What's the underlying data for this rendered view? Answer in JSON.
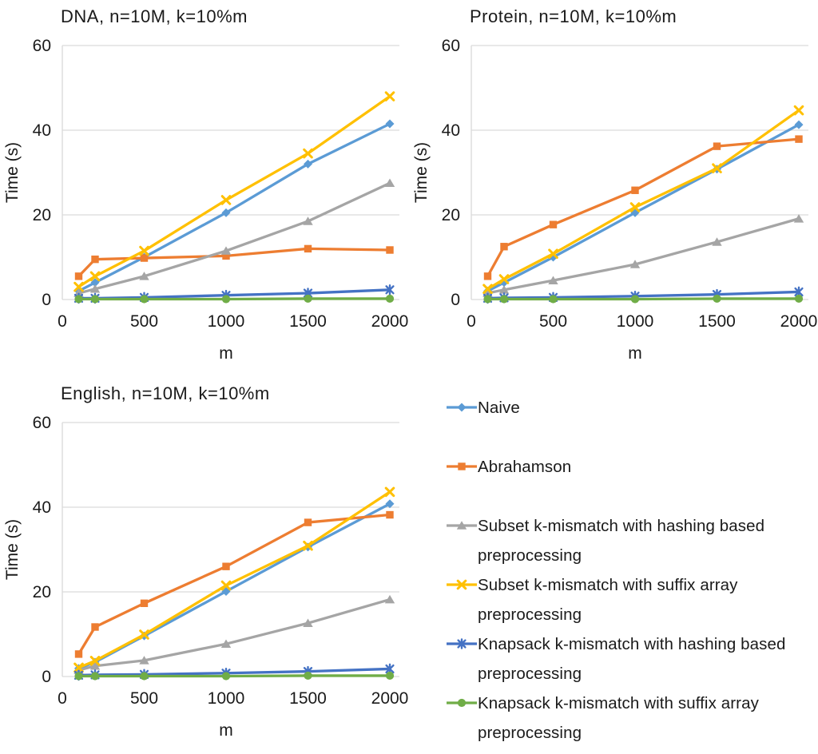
{
  "figure": {
    "background": "#ffffff",
    "text_color": "#1a1a1a",
    "gridline_color": "#d9d9d9"
  },
  "series_styles": [
    {
      "key": "naive",
      "color": "#5B9BD5",
      "marker": "diamond"
    },
    {
      "key": "abrahamson",
      "color": "#ED7D31",
      "marker": "square"
    },
    {
      "key": "subset-hashing",
      "color": "#A5A5A5",
      "marker": "triangle"
    },
    {
      "key": "subset-suffix",
      "color": "#FFC000",
      "marker": "x"
    },
    {
      "key": "knapsack-hashing",
      "color": "#4472C4",
      "marker": "star"
    },
    {
      "key": "knapsack-suffix",
      "color": "#70AD47",
      "marker": "circle"
    }
  ],
  "chart_data": [
    {
      "id": "dna",
      "type": "line",
      "title": "DNA, n=10M, k=10%m",
      "xlabel": "m",
      "ylabel": "Time (s)",
      "xlim": [
        0,
        2060
      ],
      "ylim": [
        0,
        60
      ],
      "xticks": [
        0,
        500,
        1000,
        1500,
        2000
      ],
      "yticks": [
        0,
        20,
        40,
        60
      ],
      "grid": "horizontal",
      "x": [
        100,
        200,
        500,
        1000,
        1500,
        2000
      ],
      "series": [
        {
          "name": "Naive",
          "values": [
            2.0,
            4.0,
            10.0,
            20.5,
            32.0,
            41.5
          ]
        },
        {
          "name": "Abrahamson",
          "values": [
            5.5,
            9.5,
            9.8,
            10.3,
            12.0,
            11.7
          ]
        },
        {
          "name": "Subset k-mismatch with hashing based preprocessing",
          "values": [
            1.5,
            2.5,
            5.5,
            11.5,
            18.5,
            27.5
          ]
        },
        {
          "name": "Subset k-mismatch with suffix array preprocessing",
          "values": [
            3.0,
            5.5,
            11.5,
            23.5,
            34.5,
            48.0
          ]
        },
        {
          "name": "Knapsack k-mismatch with hashing based preprocessing",
          "values": [
            0.3,
            0.3,
            0.5,
            1.0,
            1.5,
            2.3
          ]
        },
        {
          "name": "Knapsack k-mismatch with suffix array preprocessing",
          "values": [
            0.1,
            0.1,
            0.1,
            0.1,
            0.2,
            0.2
          ]
        }
      ]
    },
    {
      "id": "protein",
      "type": "line",
      "title": "Protein, n=10M, k=10%m",
      "xlabel": "m",
      "ylabel": "Time (s)",
      "xlim": [
        0,
        2060
      ],
      "ylim": [
        0,
        60
      ],
      "xticks": [
        0,
        500,
        1000,
        1500,
        2000
      ],
      "yticks": [
        0,
        20,
        40,
        60
      ],
      "grid": "horizontal",
      "x": [
        100,
        200,
        500,
        1000,
        1500,
        2000
      ],
      "series": [
        {
          "name": "Naive",
          "values": [
            2.0,
            4.0,
            10.0,
            20.5,
            30.8,
            41.3
          ]
        },
        {
          "name": "Abrahamson",
          "values": [
            5.5,
            12.5,
            17.7,
            25.8,
            36.2,
            37.9
          ]
        },
        {
          "name": "Subset k-mismatch with hashing based preprocessing",
          "values": [
            1.5,
            2.3,
            4.5,
            8.3,
            13.6,
            19.1
          ]
        },
        {
          "name": "Subset k-mismatch with suffix array preprocessing",
          "values": [
            2.5,
            4.8,
            10.8,
            21.8,
            31.0,
            44.7
          ]
        },
        {
          "name": "Knapsack k-mismatch with hashing based preprocessing",
          "values": [
            0.3,
            0.4,
            0.5,
            0.8,
            1.2,
            1.8
          ]
        },
        {
          "name": "Knapsack k-mismatch with suffix array preprocessing",
          "values": [
            0.1,
            0.1,
            0.1,
            0.1,
            0.2,
            0.2
          ]
        }
      ]
    },
    {
      "id": "english",
      "type": "line",
      "title": "English, n=10M, k=10%m",
      "xlabel": "m",
      "ylabel": "Time (s)",
      "xlim": [
        0,
        2060
      ],
      "ylim": [
        0,
        60
      ],
      "xticks": [
        0,
        500,
        1000,
        1500,
        2000
      ],
      "yticks": [
        0,
        20,
        40,
        60
      ],
      "grid": "horizontal",
      "x": [
        100,
        200,
        500,
        1000,
        1500,
        2000
      ],
      "series": [
        {
          "name": "Naive",
          "values": [
            1.9,
            3.4,
            9.6,
            20.1,
            30.6,
            40.8
          ]
        },
        {
          "name": "Abrahamson",
          "values": [
            5.3,
            11.7,
            17.3,
            26.0,
            36.4,
            38.2
          ]
        },
        {
          "name": "Subset k-mismatch with hashing based preprocessing",
          "values": [
            1.5,
            2.5,
            3.8,
            7.7,
            12.6,
            18.2
          ]
        },
        {
          "name": "Subset k-mismatch with suffix array preprocessing",
          "values": [
            2.1,
            3.7,
            9.9,
            21.5,
            30.9,
            43.6
          ]
        },
        {
          "name": "Knapsack k-mismatch with hashing based preprocessing",
          "values": [
            0.3,
            0.4,
            0.5,
            0.8,
            1.2,
            1.8
          ]
        },
        {
          "name": "Knapsack k-mismatch with suffix array preprocessing",
          "values": [
            0.1,
            0.1,
            0.1,
            0.1,
            0.2,
            0.2
          ]
        }
      ]
    }
  ],
  "legend": {
    "items": [
      {
        "label": "Naive",
        "color": "#5B9BD5",
        "marker": "diamond"
      },
      {
        "label": "Abrahamson",
        "color": "#ED7D31",
        "marker": "square"
      },
      {
        "label": "Subset k-mismatch with hashing based preprocessing",
        "color": "#A5A5A5",
        "marker": "triangle"
      },
      {
        "label": "Subset k-mismatch with suffix array preprocessing",
        "color": "#FFC000",
        "marker": "x"
      },
      {
        "label": "Knapsack k-mismatch with hashing based preprocessing",
        "color": "#4472C4",
        "marker": "star"
      },
      {
        "label": "Knapsack k-mismatch with suffix array preprocessing",
        "color": "#70AD47",
        "marker": "circle"
      }
    ]
  }
}
